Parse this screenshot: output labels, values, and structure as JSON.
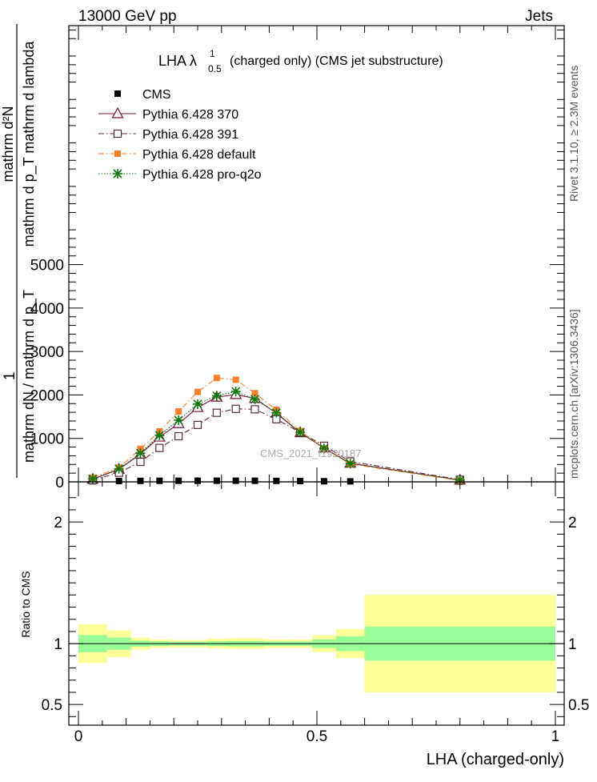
{
  "header": {
    "left": "13000 GeV pp",
    "right": "Jets"
  },
  "side_labels": {
    "rivet": "Rivet 3.1.10, ≥ 2.3M events",
    "mcplots": "mcplots.cern.ch [arXiv:1306.3436]"
  },
  "watermark": "CMS_2021_I1920187",
  "ylabel_main": {
    "num1": "1",
    "den1": "mathrm dN / mathrm d p_T",
    "num2": "mathrm d²N",
    "den2": "mathrm d p_T mathrm d lambda"
  },
  "ylabel_ratio": "Ratio to CMS",
  "xlabel": "LHA (charged-only)",
  "chart_data": [
    {
      "type": "line",
      "title": "LHA λ¹₀.₅ (charged only) (CMS jet substructure)",
      "title_parts": {
        "lead": "LHA λ",
        "sup": "1",
        "sub": "0.5",
        "tail": "(charged only) (CMS jet substructure)"
      },
      "xlim": [
        0,
        1
      ],
      "ylim": [
        0,
        10500
      ],
      "yticks": [
        0,
        1000,
        2000,
        3000,
        4000,
        5000
      ],
      "ytick_labels": [
        "0",
        "1000",
        "2000",
        "3000",
        "4000",
        "5000"
      ],
      "legend_position": "top-left",
      "x": [
        0.03,
        0.085,
        0.13,
        0.17,
        0.21,
        0.25,
        0.29,
        0.33,
        0.37,
        0.415,
        0.465,
        0.515,
        0.57,
        0.8
      ],
      "series": [
        {
          "name": "CMS",
          "color": "#000000",
          "marker": "square-filled",
          "line": "none",
          "values": [
            14,
            20,
            22,
            24,
            25,
            25,
            26,
            26,
            25,
            22,
            19,
            14,
            11,
            8
          ]
        },
        {
          "name": "Pythia 6.428 370",
          "color": "#7a0f3a",
          "marker": "triangle-open",
          "line": "solid",
          "values": [
            60,
            290,
            640,
            1030,
            1340,
            1710,
            1950,
            2010,
            1920,
            1580,
            1130,
            780,
            430,
            40
          ]
        },
        {
          "name": "Pythia 6.428 391",
          "color": "#5a2a3a",
          "marker": "square-open",
          "line": "dashdot",
          "values": [
            40,
            210,
            460,
            780,
            1050,
            1310,
            1590,
            1680,
            1670,
            1440,
            1140,
            830,
            470,
            50
          ]
        },
        {
          "name": "Pythia 6.428 default",
          "color": "#ff7f2a",
          "marker": "square-filled",
          "line": "dashdot",
          "values": [
            95,
            330,
            760,
            1160,
            1620,
            2070,
            2390,
            2350,
            2040,
            1660,
            1170,
            770,
            410,
            30
          ]
        },
        {
          "name": "Pythia 6.428 pro-q2o",
          "color": "#0a7a0a",
          "marker": "star",
          "line": "dotted",
          "values": [
            70,
            300,
            660,
            1070,
            1420,
            1790,
            1980,
            2080,
            1900,
            1590,
            1140,
            770,
            420,
            40
          ]
        }
      ]
    },
    {
      "type": "area",
      "ylabel": "Ratio to CMS",
      "xlim": [
        0,
        1
      ],
      "ylim": [
        0.33,
        2.33
      ],
      "yticks": [
        0.5,
        1,
        2
      ],
      "ytick_labels": [
        "0.5",
        "1",
        "2"
      ],
      "xticks": [
        0,
        0.5,
        1
      ],
      "xtick_labels": [
        "0",
        "0.5",
        "1"
      ],
      "bins": [
        {
          "x_low": 0.0,
          "x_high": 0.06,
          "stat_low": 0.93,
          "stat_high": 1.07,
          "total_low": 0.84,
          "total_high": 1.16
        },
        {
          "x_low": 0.06,
          "x_high": 0.11,
          "stat_low": 0.95,
          "stat_high": 1.05,
          "total_low": 0.89,
          "total_high": 1.11
        },
        {
          "x_low": 0.11,
          "x_high": 0.15,
          "stat_low": 0.975,
          "stat_high": 1.025,
          "total_low": 0.95,
          "total_high": 1.05
        },
        {
          "x_low": 0.15,
          "x_high": 0.19,
          "stat_low": 0.98,
          "stat_high": 1.02,
          "total_low": 0.965,
          "total_high": 1.035
        },
        {
          "x_low": 0.19,
          "x_high": 0.23,
          "stat_low": 0.985,
          "stat_high": 1.015,
          "total_low": 0.97,
          "total_high": 1.03
        },
        {
          "x_low": 0.23,
          "x_high": 0.27,
          "stat_low": 0.985,
          "stat_high": 1.015,
          "total_low": 0.97,
          "total_high": 1.03
        },
        {
          "x_low": 0.27,
          "x_high": 0.31,
          "stat_low": 0.98,
          "stat_high": 1.02,
          "total_low": 0.96,
          "total_high": 1.04
        },
        {
          "x_low": 0.31,
          "x_high": 0.35,
          "stat_low": 0.978,
          "stat_high": 1.022,
          "total_low": 0.955,
          "total_high": 1.045
        },
        {
          "x_low": 0.35,
          "x_high": 0.39,
          "stat_low": 0.978,
          "stat_high": 1.022,
          "total_low": 0.955,
          "total_high": 1.045
        },
        {
          "x_low": 0.39,
          "x_high": 0.44,
          "stat_low": 0.982,
          "stat_high": 1.018,
          "total_low": 0.965,
          "total_high": 1.035
        },
        {
          "x_low": 0.44,
          "x_high": 0.49,
          "stat_low": 0.982,
          "stat_high": 1.018,
          "total_low": 0.965,
          "total_high": 1.035
        },
        {
          "x_low": 0.49,
          "x_high": 0.54,
          "stat_low": 0.965,
          "stat_high": 1.035,
          "total_low": 0.93,
          "total_high": 1.07
        },
        {
          "x_low": 0.54,
          "x_high": 0.6,
          "stat_low": 0.94,
          "stat_high": 1.06,
          "total_low": 0.88,
          "total_high": 1.12
        },
        {
          "x_low": 0.6,
          "x_high": 1.0,
          "stat_low": 0.86,
          "stat_high": 1.14,
          "total_low": 0.6,
          "total_high": 1.4
        }
      ],
      "colors": {
        "stat": "#99ff99",
        "total": "#ffff99",
        "reference_line": "#000000"
      }
    }
  ]
}
